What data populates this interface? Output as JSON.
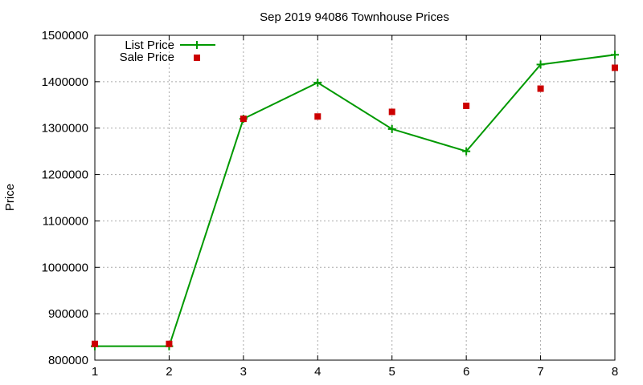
{
  "chart_data": {
    "type": "line",
    "title": "Sep 2019 94086 Townhouse Prices",
    "xlabel": "",
    "ylabel": "Price",
    "x": [
      1,
      2,
      3,
      4,
      5,
      6,
      7,
      8
    ],
    "xlim": [
      1,
      8
    ],
    "ylim": [
      800000,
      1500000
    ],
    "xticks": [
      "1",
      "2",
      "3",
      "4",
      "5",
      "6",
      "7",
      "8"
    ],
    "yticks": [
      "800000",
      "900000",
      "1000000",
      "1100000",
      "1200000",
      "1300000",
      "1400000",
      "1500000"
    ],
    "grid": true,
    "legend_position": "top-left",
    "series": [
      {
        "name": "List Price",
        "style": "line-with-plus-markers",
        "color": "#009900",
        "values": [
          830000,
          830000,
          1320000,
          1398000,
          1298000,
          1250000,
          1437000,
          1458000
        ]
      },
      {
        "name": "Sale Price",
        "style": "square-points",
        "color": "#cc0000",
        "values": [
          835000,
          835000,
          1320000,
          1325000,
          1335000,
          1348000,
          1385000,
          1430000
        ]
      }
    ]
  }
}
